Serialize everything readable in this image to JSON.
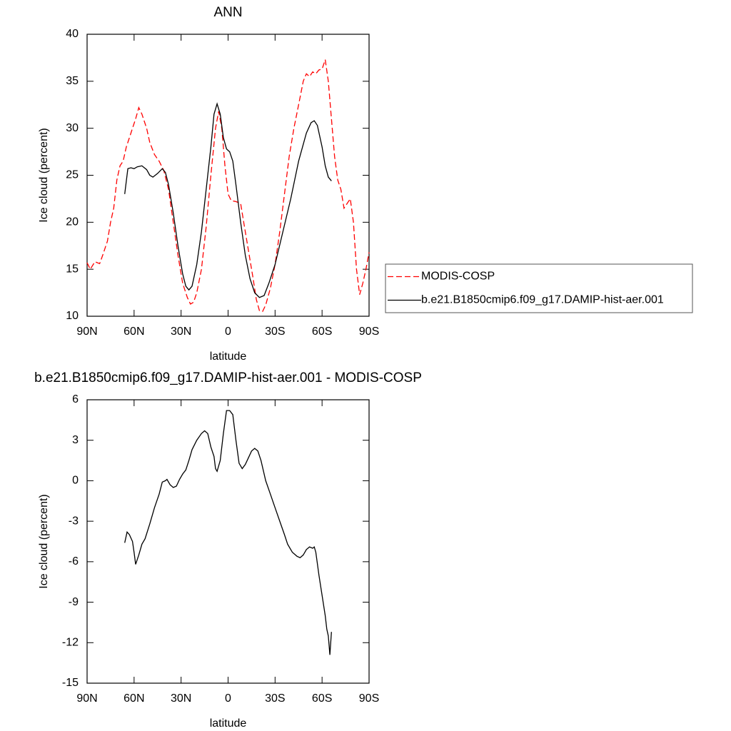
{
  "chart_data": [
    {
      "type": "line",
      "title": "ANN",
      "x_label": "latitude",
      "y_label": "Ice cloud (percent)",
      "xlim": [
        90,
        -90
      ],
      "xticks": [
        {
          "value": 90,
          "label": "90N"
        },
        {
          "value": 60,
          "label": "60N"
        },
        {
          "value": 30,
          "label": "30N"
        },
        0,
        {
          "value": -30,
          "label": "30S"
        },
        {
          "value": -60,
          "label": "60S"
        },
        {
          "value": -90,
          "label": "90S"
        }
      ],
      "ylim": [
        10,
        40
      ],
      "yticks": [
        10,
        15,
        20,
        25,
        30,
        35,
        40
      ],
      "legend": "outside-right",
      "series": [
        {
          "name": "MODIS-COSP",
          "color": "#ff0000",
          "style": "dashed",
          "x": [
            90,
            88,
            85,
            82,
            80,
            77,
            75,
            73,
            71,
            69,
            67,
            65,
            63,
            61,
            59,
            57,
            55,
            52,
            50,
            47,
            44,
            41,
            38,
            35,
            32,
            29,
            26,
            24,
            22,
            20,
            17,
            14,
            11,
            8,
            6,
            4,
            2,
            0,
            -2,
            -5,
            -8,
            -10,
            -13,
            -16,
            -18,
            -20,
            -22,
            -24,
            -27,
            -30,
            -33,
            -36,
            -39,
            -42,
            -45,
            -48,
            -50,
            -52,
            -54,
            -56,
            -58,
            -60,
            -62,
            -64,
            -66,
            -68,
            -70,
            -72,
            -74,
            -76,
            -78,
            -80,
            -82,
            -84,
            -86,
            -88,
            -90
          ],
          "values": [
            15.7,
            15.0,
            15.8,
            15.6,
            16.5,
            18,
            20,
            21.5,
            24.5,
            26,
            26.5,
            28,
            29,
            30,
            31,
            32.2,
            31.5,
            30,
            28.5,
            27.2,
            26.5,
            25.5,
            23.5,
            20,
            16.5,
            13.5,
            12,
            11.3,
            11.5,
            12.5,
            15,
            19.5,
            25,
            30,
            31.8,
            30,
            26,
            23,
            22.3,
            22.2,
            22,
            20,
            17,
            14,
            11.8,
            10.6,
            10.5,
            11.2,
            13,
            15.5,
            19,
            23,
            27,
            30,
            32.5,
            35,
            35.8,
            35.5,
            36,
            35.8,
            36.2,
            36.3,
            37.3,
            35,
            31,
            27,
            24.5,
            23.5,
            21.5,
            22,
            22.5,
            20,
            15,
            12.3,
            13.5,
            15,
            16.8
          ]
        },
        {
          "name": "b.e21.B1850cmip6.f09_g17.DAMIP-hist-aer.001",
          "color": "#000000",
          "style": "solid",
          "x": [
            66,
            64,
            62,
            60,
            58,
            55,
            52,
            50,
            48,
            45,
            42,
            40,
            38,
            35,
            32,
            29,
            27,
            25,
            23,
            20,
            17,
            14,
            11,
            9,
            7,
            5,
            3,
            1,
            -1,
            -3,
            -5,
            -8,
            -11,
            -14,
            -17,
            -20,
            -23,
            -26,
            -30,
            -35,
            -40,
            -45,
            -50,
            -53,
            -55,
            -57,
            -60,
            -62,
            -64,
            -66
          ],
          "values": [
            23,
            25.7,
            25.8,
            25.7,
            25.9,
            26,
            25.6,
            25,
            24.8,
            25.2,
            25.7,
            25.3,
            24,
            21,
            17.5,
            14.5,
            13.2,
            12.8,
            13.2,
            15.5,
            19,
            23.5,
            28,
            31.5,
            32.6,
            31.5,
            29,
            27.8,
            27.5,
            26.5,
            24,
            20,
            16.5,
            14,
            12.5,
            12,
            12.2,
            13.5,
            15.5,
            19,
            22.5,
            26.5,
            29.5,
            30.6,
            30.8,
            30.3,
            28,
            26,
            24.8,
            24.4
          ]
        }
      ]
    },
    {
      "type": "line",
      "title": "b.e21.B1850cmip6.f09_g17.DAMIP-hist-aer.001 - MODIS-COSP",
      "x_label": "latitude",
      "y_label": "Ice cloud (percent)",
      "xlim": [
        90,
        -90
      ],
      "xticks": [
        {
          "value": 90,
          "label": "90N"
        },
        {
          "value": 60,
          "label": "60N"
        },
        {
          "value": 30,
          "label": "30N"
        },
        0,
        {
          "value": -30,
          "label": "30S"
        },
        {
          "value": -60,
          "label": "60S"
        },
        {
          "value": -90,
          "label": "90S"
        }
      ],
      "ylim": [
        -15,
        6
      ],
      "yticks": [
        -15,
        -12,
        -9,
        -6,
        -3,
        0,
        3,
        6
      ],
      "series": [
        {
          "color": "#000000",
          "style": "solid",
          "x": [
            66,
            64.5,
            63,
            61,
            60,
            59,
            57,
            55,
            53,
            50,
            47,
            44,
            42,
            40,
            39,
            37,
            35,
            33,
            31,
            29,
            27,
            25,
            23,
            20,
            17,
            15,
            13,
            11,
            9,
            8,
            7,
            5,
            3,
            1,
            -1,
            -3,
            -5,
            -7,
            -9,
            -11,
            -13,
            -15,
            -17,
            -19,
            -21,
            -24,
            -27,
            -30,
            -33,
            -36,
            -38,
            -41,
            -44,
            -46,
            -48,
            -50,
            -52,
            -54,
            -55,
            -56,
            -58,
            -60,
            -62,
            -63,
            -64,
            -65,
            -66
          ],
          "values": [
            -4.6,
            -3.8,
            -4.0,
            -4.5,
            -5.3,
            -6.2,
            -5.5,
            -4.7,
            -4.3,
            -3.2,
            -2.0,
            -1.0,
            -0.1,
            0,
            0.1,
            -0.3,
            -0.5,
            -0.4,
            0.1,
            0.5,
            0.8,
            1.5,
            2.3,
            3.0,
            3.5,
            3.7,
            3.5,
            2.5,
            1.8,
            0.9,
            0.7,
            1.5,
            3.5,
            5.2,
            5.2,
            4.9,
            3.0,
            1.3,
            0.9,
            1.2,
            1.7,
            2.2,
            2.4,
            2.2,
            1.5,
            0.0,
            -1,
            -2,
            -3,
            -4,
            -4.7,
            -5.3,
            -5.6,
            -5.7,
            -5.5,
            -5.1,
            -4.9,
            -5.0,
            -4.9,
            -5.3,
            -7,
            -8.5,
            -10,
            -11,
            -11.5,
            -12.9,
            -11.2
          ]
        }
      ]
    }
  ]
}
